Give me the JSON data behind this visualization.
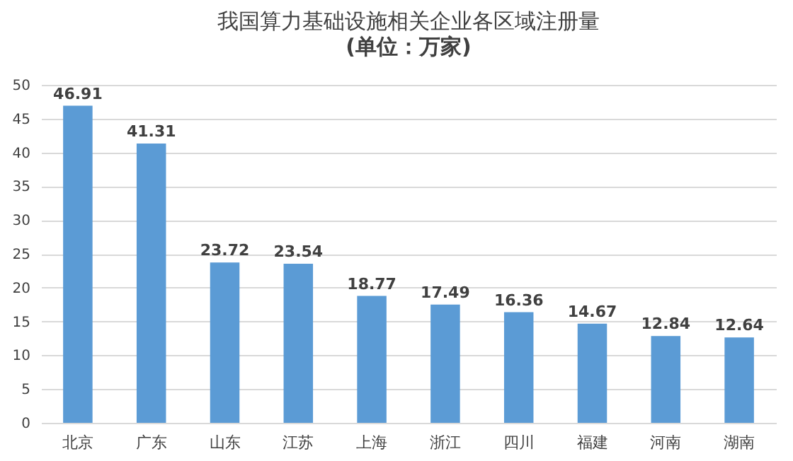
{
  "chart_data": {
    "type": "bar",
    "title": "我国算力基础设施相关企业各区域注册量",
    "subtitle": "(单位：万家)",
    "categories": [
      "北京",
      "广东",
      "山东",
      "江苏",
      "上海",
      "浙江",
      "四川",
      "福建",
      "河南",
      "湖南"
    ],
    "values": [
      46.91,
      41.31,
      23.72,
      23.54,
      18.77,
      17.49,
      16.36,
      14.67,
      12.84,
      12.64
    ],
    "color": "#5b9bd5",
    "ylim": [
      0,
      50
    ],
    "yticks": [
      0,
      5,
      10,
      15,
      20,
      25,
      30,
      35,
      40,
      45,
      50
    ],
    "grid": "y",
    "data_labels": true
  }
}
